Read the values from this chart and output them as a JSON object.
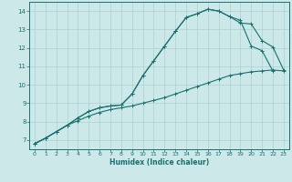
{
  "xlabel": "Humidex (Indice chaleur)",
  "bg_color": "#cce8e8",
  "grid_color": "#aad0d0",
  "line_color": "#1a7070",
  "xlim": [
    -0.5,
    23.5
  ],
  "ylim": [
    6.5,
    14.5
  ],
  "xticks": [
    0,
    1,
    2,
    3,
    4,
    5,
    6,
    7,
    8,
    9,
    10,
    11,
    12,
    13,
    14,
    15,
    16,
    17,
    18,
    19,
    20,
    21,
    22,
    23
  ],
  "yticks": [
    7,
    8,
    9,
    10,
    11,
    12,
    13,
    14
  ],
  "line1_x": [
    0,
    1,
    2,
    3,
    4,
    5,
    6,
    7,
    8,
    9,
    10,
    11,
    12,
    13,
    14,
    15,
    16,
    17,
    18,
    19,
    20,
    21,
    22,
    23
  ],
  "line1_y": [
    6.8,
    7.1,
    7.45,
    7.8,
    8.05,
    8.3,
    8.5,
    8.65,
    8.75,
    8.85,
    9.0,
    9.15,
    9.3,
    9.5,
    9.7,
    9.9,
    10.1,
    10.3,
    10.5,
    10.6,
    10.7,
    10.75,
    10.8,
    10.75
  ],
  "line2_x": [
    0,
    1,
    2,
    3,
    4,
    5,
    6,
    7,
    8,
    9,
    10,
    11,
    12,
    13,
    14,
    15,
    16,
    17,
    18,
    19,
    20,
    21,
    22
  ],
  "line2_y": [
    6.8,
    7.1,
    7.45,
    7.8,
    8.2,
    8.55,
    8.75,
    8.85,
    8.9,
    9.5,
    10.5,
    11.3,
    12.1,
    12.9,
    13.65,
    13.85,
    14.1,
    14.0,
    13.7,
    13.5,
    12.1,
    11.85,
    10.75
  ],
  "line3_x": [
    0,
    1,
    2,
    3,
    4,
    5,
    6,
    7,
    8,
    9,
    10,
    11,
    12,
    13,
    14,
    15,
    16,
    17,
    18,
    19,
    20,
    21,
    22,
    23
  ],
  "line3_y": [
    6.8,
    7.1,
    7.45,
    7.8,
    8.2,
    8.55,
    8.75,
    8.85,
    8.9,
    9.5,
    10.5,
    11.3,
    12.1,
    12.9,
    13.65,
    13.85,
    14.1,
    14.0,
    13.7,
    13.35,
    13.3,
    12.4,
    12.05,
    10.8
  ]
}
